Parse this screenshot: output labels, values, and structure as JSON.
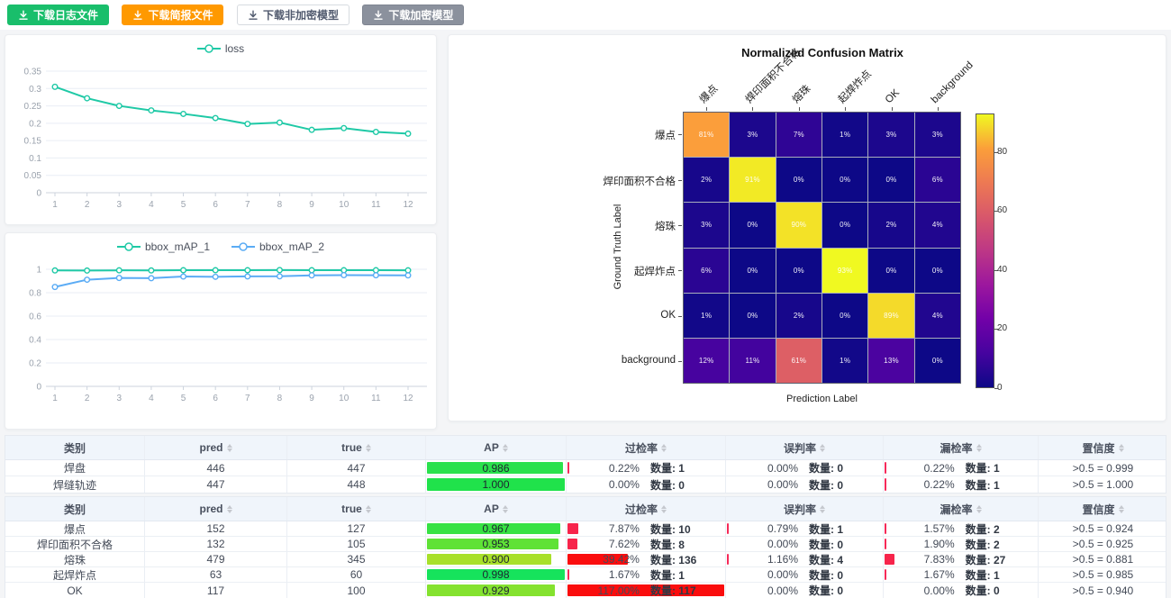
{
  "toolbar": {
    "buttons": [
      {
        "id": "download-log",
        "label": "下载日志文件",
        "bg": "#19be6b",
        "color": "#ffffff",
        "border": "#19be6b"
      },
      {
        "id": "download-brief",
        "label": "下载简报文件",
        "bg": "#ff9900",
        "color": "#ffffff",
        "border": "#ff9900"
      },
      {
        "id": "download-plain-model",
        "label": "下载非加密模型",
        "bg": "#ffffff",
        "color": "#515a6e",
        "border": "#d7dbe0"
      },
      {
        "id": "download-encrypted-model",
        "label": "下载加密模型",
        "bg": "#8b919d",
        "color": "#ffffff",
        "border": "#7f8591"
      }
    ]
  },
  "chart_data": [
    {
      "type": "line",
      "title": "",
      "x": [
        1,
        2,
        3,
        4,
        5,
        6,
        7,
        8,
        9,
        10,
        11,
        12
      ],
      "series": [
        {
          "name": "loss",
          "color": "#1fc9a6",
          "values": [
            0.305,
            0.272,
            0.25,
            0.237,
            0.227,
            0.215,
            0.198,
            0.202,
            0.181,
            0.186,
            0.175,
            0.17
          ]
        }
      ],
      "yticks": [
        0,
        0.05,
        0.1,
        0.15,
        0.2,
        0.25,
        0.3,
        0.35
      ],
      "ylim": [
        0,
        0.35
      ],
      "grid": true,
      "legend_position": "top"
    },
    {
      "type": "line",
      "title": "",
      "x": [
        1,
        2,
        3,
        4,
        5,
        6,
        7,
        8,
        9,
        10,
        11,
        12
      ],
      "series": [
        {
          "name": "bbox_mAP_1",
          "color": "#1fc9a6",
          "values": [
            0.99,
            0.989,
            0.991,
            0.99,
            0.992,
            0.992,
            0.992,
            0.993,
            0.992,
            0.992,
            0.992,
            0.991
          ]
        },
        {
          "name": "bbox_mAP_2",
          "color": "#5bacf5",
          "values": [
            0.849,
            0.911,
            0.926,
            0.924,
            0.938,
            0.936,
            0.939,
            0.94,
            0.948,
            0.95,
            0.949,
            0.948
          ]
        }
      ],
      "yticks": [
        0,
        0.2,
        0.4,
        0.6,
        0.8,
        1
      ],
      "ylim": [
        0,
        1
      ],
      "grid": true,
      "legend_position": "top"
    },
    {
      "type": "heatmap",
      "title": "Normalized Confusion Matrix",
      "xlabel": "Prediction Label",
      "ylabel": "Ground Truth Label",
      "x_categories": [
        "爆点",
        "焊印面积不合格",
        "熔珠",
        "起焊炸点",
        "OK",
        "background"
      ],
      "y_categories": [
        "爆点",
        "焊印面积不合格",
        "熔珠",
        "起焊炸点",
        "OK",
        "background"
      ],
      "values_percent": [
        [
          81,
          3,
          7,
          1,
          3,
          3
        ],
        [
          2,
          91,
          0,
          0,
          0,
          6
        ],
        [
          3,
          0,
          90,
          0,
          2,
          4
        ],
        [
          6,
          0,
          0,
          93,
          0,
          0
        ],
        [
          1,
          0,
          2,
          0,
          89,
          4
        ],
        [
          12,
          11,
          61,
          1,
          13,
          0
        ]
      ],
      "colormap": "plasma",
      "vmin": 0,
      "vmax": 93,
      "colorbar_ticks": [
        0,
        20,
        40,
        60,
        80
      ]
    }
  ],
  "tables": [
    {
      "columns": [
        {
          "key": "category",
          "label": "类别",
          "sortable": false
        },
        {
          "key": "pred",
          "label": "pred",
          "sortable": true
        },
        {
          "key": "true",
          "label": "true",
          "sortable": true
        },
        {
          "key": "ap",
          "label": "AP",
          "sortable": true
        },
        {
          "key": "over",
          "label": "过检率",
          "sortable": true
        },
        {
          "key": "mis",
          "label": "误判率",
          "sortable": true
        },
        {
          "key": "miss",
          "label": "漏检率",
          "sortable": true
        },
        {
          "key": "conf",
          "label": "置信度",
          "sortable": true
        }
      ],
      "count_label": "数量:",
      "rows": [
        {
          "category": "焊盘",
          "pred": "446",
          "true": "447",
          "ap": {
            "value": "0.986",
            "color": "#2ae14d"
          },
          "over": {
            "pct": "0.22%",
            "count": "1"
          },
          "mis": {
            "pct": "0.00%",
            "count": "0"
          },
          "miss": {
            "pct": "0.22%",
            "count": "1"
          },
          "conf": ">0.5 = 0.999"
        },
        {
          "category": "焊缝轨迹",
          "pred": "447",
          "true": "448",
          "ap": {
            "value": "1.000",
            "color": "#20e24b"
          },
          "over": {
            "pct": "0.00%",
            "count": "0"
          },
          "mis": {
            "pct": "0.00%",
            "count": "0"
          },
          "miss": {
            "pct": "0.22%",
            "count": "1"
          },
          "conf": ">0.5 = 1.000"
        }
      ]
    },
    {
      "columns": [
        {
          "key": "category",
          "label": "类别",
          "sortable": false
        },
        {
          "key": "pred",
          "label": "pred",
          "sortable": true
        },
        {
          "key": "true",
          "label": "true",
          "sortable": true
        },
        {
          "key": "ap",
          "label": "AP",
          "sortable": true
        },
        {
          "key": "over",
          "label": "过检率",
          "sortable": true
        },
        {
          "key": "mis",
          "label": "误判率",
          "sortable": true
        },
        {
          "key": "miss",
          "label": "漏检率",
          "sortable": true
        },
        {
          "key": "conf",
          "label": "置信度",
          "sortable": true
        }
      ],
      "count_label": "数量:",
      "rows": [
        {
          "category": "爆点",
          "pred": "152",
          "true": "127",
          "ap": {
            "value": "0.967",
            "color": "#37e243"
          },
          "over": {
            "pct": "7.87%",
            "count": "10"
          },
          "mis": {
            "pct": "0.79%",
            "count": "1"
          },
          "miss": {
            "pct": "1.57%",
            "count": "2"
          },
          "conf": ">0.5 = 0.924"
        },
        {
          "category": "焊印面积不合格",
          "pred": "132",
          "true": "105",
          "ap": {
            "value": "0.953",
            "color": "#5fe236"
          },
          "over": {
            "pct": "7.62%",
            "count": "8"
          },
          "mis": {
            "pct": "0.00%",
            "count": "0"
          },
          "miss": {
            "pct": "1.90%",
            "count": "2"
          },
          "conf": ">0.5 = 0.925"
        },
        {
          "category": "熔珠",
          "pred": "479",
          "true": "345",
          "ap": {
            "value": "0.900",
            "color": "#a8e02a"
          },
          "over": {
            "pct": "39.42%",
            "count": "136"
          },
          "mis": {
            "pct": "1.16%",
            "count": "4"
          },
          "miss": {
            "pct": "7.83%",
            "count": "27"
          },
          "conf": ">0.5 = 0.881"
        },
        {
          "category": "起焊炸点",
          "pred": "63",
          "true": "60",
          "ap": {
            "value": "0.998",
            "color": "#16e35c"
          },
          "over": {
            "pct": "1.67%",
            "count": "1"
          },
          "mis": {
            "pct": "0.00%",
            "count": "0"
          },
          "miss": {
            "pct": "1.67%",
            "count": "1"
          },
          "conf": ">0.5 = 0.985"
        },
        {
          "category": "OK",
          "pred": "117",
          "true": "100",
          "ap": {
            "value": "0.929",
            "color": "#84e22f"
          },
          "over": {
            "pct": "117.00%",
            "count": "117"
          },
          "mis": {
            "pct": "0.00%",
            "count": "0"
          },
          "miss": {
            "pct": "0.00%",
            "count": "0"
          },
          "conf": ">0.5 = 0.940"
        }
      ]
    }
  ],
  "colors": {
    "rate_bar_low": "#f62a5a",
    "rate_bar_high": "#fa0d0d",
    "grid_line": "#e9eef5",
    "axis_line": "#ccd3dd",
    "tick_text": "#9aa2ad"
  }
}
